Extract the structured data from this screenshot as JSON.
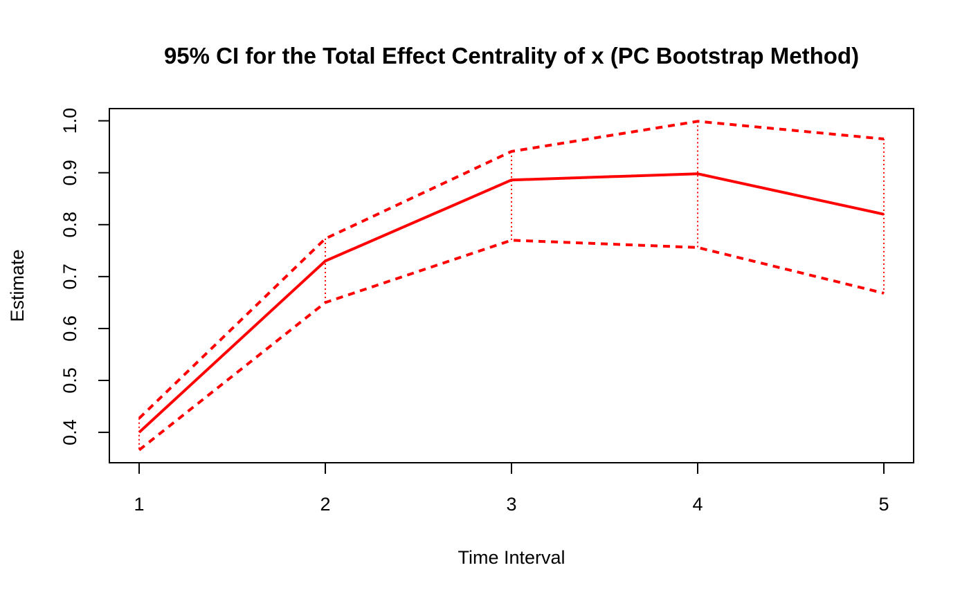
{
  "chart_data": {
    "type": "line",
    "title": "95% CI for the Total Effect Centrality of x (PC Bootstrap Method)",
    "xlabel": "Time Interval",
    "ylabel": "Estimate",
    "x": [
      1,
      2,
      3,
      4,
      5
    ],
    "xlim": [
      0.84,
      5.16
    ],
    "ylim": [
      0.3415,
      1.0235
    ],
    "xticks": [
      "1",
      "2",
      "3",
      "4",
      "5"
    ],
    "yticks": [
      "0.4",
      "0.5",
      "0.6",
      "0.7",
      "0.8",
      "0.9",
      "1.0"
    ],
    "grid": false,
    "series": [
      {
        "role": "estimate",
        "values": [
          0.4,
          0.73,
          0.886,
          0.898,
          0.82
        ]
      },
      {
        "role": "upper",
        "values": [
          0.427,
          0.773,
          0.941,
          0.999,
          0.965
        ]
      },
      {
        "role": "lower",
        "values": [
          0.366,
          0.65,
          0.77,
          0.756,
          0.668
        ]
      }
    ],
    "colors": {
      "line": "#ff0000",
      "axis": "#000000"
    }
  }
}
